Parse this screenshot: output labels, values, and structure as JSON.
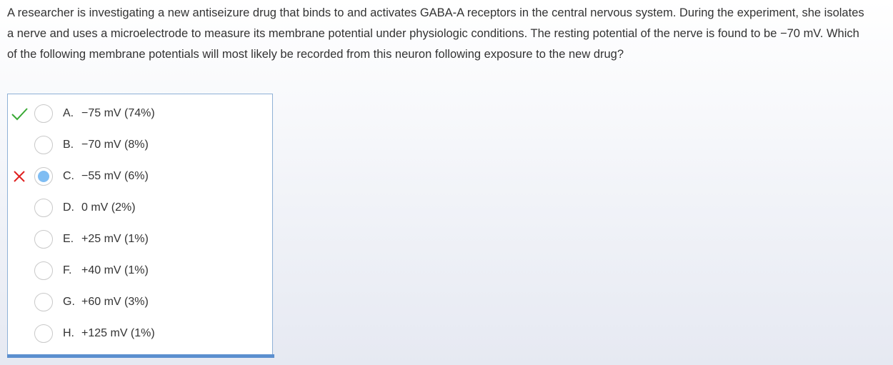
{
  "question": {
    "stem": "A researcher is investigating a new antiseizure drug that binds to and activates GABA-A receptors in the central nervous system.  During the experiment, she isolates a nerve and uses a microelectrode to measure its membrane potential under physiologic conditions.  The resting potential of the nerve is found to be −70 mV.  Which of the following membrane potentials will most likely be recorded from this neuron following exposure to the new drug?"
  },
  "options": [
    {
      "letter": "A.",
      "text": "−75 mV (74%)",
      "status": "correct",
      "selected": false
    },
    {
      "letter": "B.",
      "text": "−70 mV (8%)",
      "status": "",
      "selected": false
    },
    {
      "letter": "C.",
      "text": "−55 mV (6%)",
      "status": "incorrect",
      "selected": true
    },
    {
      "letter": "D.",
      "text": "0 mV (2%)",
      "status": "",
      "selected": false
    },
    {
      "letter": "E.",
      "text": "+25 mV (1%)",
      "status": "",
      "selected": false
    },
    {
      "letter": "F.",
      "text": "+40 mV (1%)",
      "status": "",
      "selected": false
    },
    {
      "letter": "G.",
      "text": "+60 mV (3%)",
      "status": "",
      "selected": false
    },
    {
      "letter": "H.",
      "text": "+125 mV (1%)",
      "status": "",
      "selected": false
    }
  ],
  "colors": {
    "correct": "#39a935",
    "incorrect": "#e02020",
    "selected_radio": "#7fbdf3",
    "box_border": "#8fb1d6",
    "bottom_bar": "#5b8fcf"
  }
}
